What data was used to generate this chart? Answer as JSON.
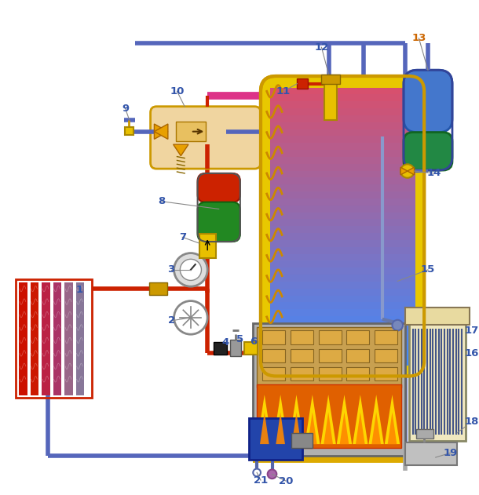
{
  "fig_width": 6.1,
  "fig_height": 6.31,
  "dpi": 100,
  "bg_color": "#ffffff",
  "pipe_red": "#cc2200",
  "pipe_blue": "#5566bb",
  "pipe_purple": "#6655aa",
  "pipe_pink": "#dd4488",
  "pipe_yellow": "#ddaa00",
  "tank_yellow": "#e8c800",
  "tank_yellow_dark": "#cc9900"
}
